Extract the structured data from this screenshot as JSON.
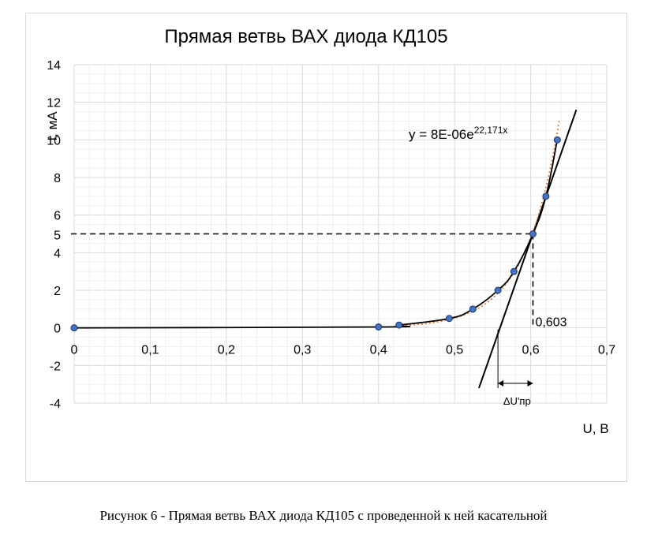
{
  "chart_data": {
    "type": "scatter",
    "title": "Прямая ветвь ВАХ диода КД105",
    "xlabel": "U, В",
    "ylabel": "I, мА",
    "xlim": [
      0,
      0.7
    ],
    "ylim": [
      -4,
      14
    ],
    "x_ticks": [
      "0",
      "0,1",
      "0,2",
      "0,3",
      "0,4",
      "0,5",
      "0,6",
      "0,7"
    ],
    "y_ticks": [
      "-4",
      "-2",
      "0",
      "2",
      "4",
      "6",
      "8",
      "10",
      "12",
      "14"
    ],
    "grid": true,
    "series": [
      {
        "points": [
          {
            "x": 0,
            "y": 0
          },
          {
            "x": 0.4,
            "y": 0.05
          },
          {
            "x": 0.427,
            "y": 0.15
          },
          {
            "x": 0.493,
            "y": 0.5
          },
          {
            "x": 0.524,
            "y": 1.0
          },
          {
            "x": 0.557,
            "y": 2.0
          },
          {
            "x": 0.578,
            "y": 3.0
          },
          {
            "x": 0.603,
            "y": 5.0
          },
          {
            "x": 0.62,
            "y": 7.0
          },
          {
            "x": 0.635,
            "y": 10.0
          }
        ],
        "color": "#4472c4"
      }
    ],
    "trendline": {
      "type": "exponential",
      "a": 8e-06,
      "b": 22.171,
      "label_prefix": "y = 8E-06e",
      "label_exponent": "22,171x",
      "color": "#ed7d31"
    },
    "tangent": {
      "x1": 0.532,
      "y1": -3.2,
      "x2": 0.66,
      "y2": 11.6,
      "color": "#000000"
    },
    "guides": {
      "y_level": 5,
      "y_level_label": "5",
      "x_level": 0.603,
      "x_level_label": "0,603"
    },
    "delta_annotation": {
      "x_from": 0.557,
      "x_to": 0.603,
      "label": "ΔU'пр"
    }
  },
  "caption": "Рисунок 6 - Прямая ветвь ВАХ диода КД105 с проведенной к ней касательной"
}
